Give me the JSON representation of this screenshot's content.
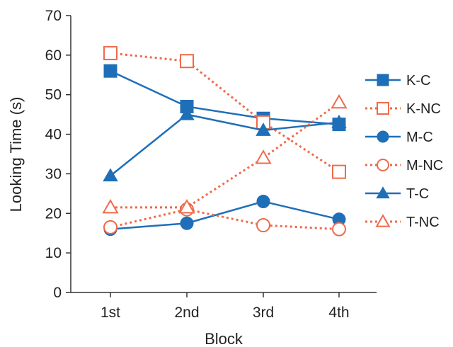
{
  "chart_data": {
    "type": "line",
    "xlabel": "Block",
    "ylabel": "Looking Time (s)",
    "categories": [
      "1st",
      "2nd",
      "3rd",
      "4th"
    ],
    "ylim": [
      0,
      70
    ],
    "yticks": [
      0,
      10,
      20,
      30,
      40,
      50,
      60,
      70
    ],
    "grid": false,
    "legend_position": "right",
    "series": [
      {
        "name": "K-C",
        "values": [
          56,
          47,
          44,
          42.5
        ],
        "marker": "square",
        "filled": true,
        "dashed": false,
        "color": "#1f6fb8"
      },
      {
        "name": "K-NC",
        "values": [
          60.5,
          58.5,
          43,
          30.5
        ],
        "marker": "square",
        "filled": false,
        "dashed": true,
        "color": "#ef6a4a"
      },
      {
        "name": "M-C",
        "values": [
          16,
          17.5,
          23,
          18.5
        ],
        "marker": "circle",
        "filled": true,
        "dashed": false,
        "color": "#1f6fb8"
      },
      {
        "name": "M-NC",
        "values": [
          16.5,
          21,
          17,
          16
        ],
        "marker": "circle",
        "filled": false,
        "dashed": true,
        "color": "#ef6a4a"
      },
      {
        "name": "T-C",
        "values": [
          29.5,
          45,
          41,
          43
        ],
        "marker": "triangle",
        "filled": true,
        "dashed": false,
        "color": "#1f6fb8"
      },
      {
        "name": "T-NC",
        "values": [
          21.5,
          21.5,
          34,
          48
        ],
        "marker": "triangle",
        "filled": false,
        "dashed": true,
        "color": "#ef6a4a"
      }
    ]
  }
}
